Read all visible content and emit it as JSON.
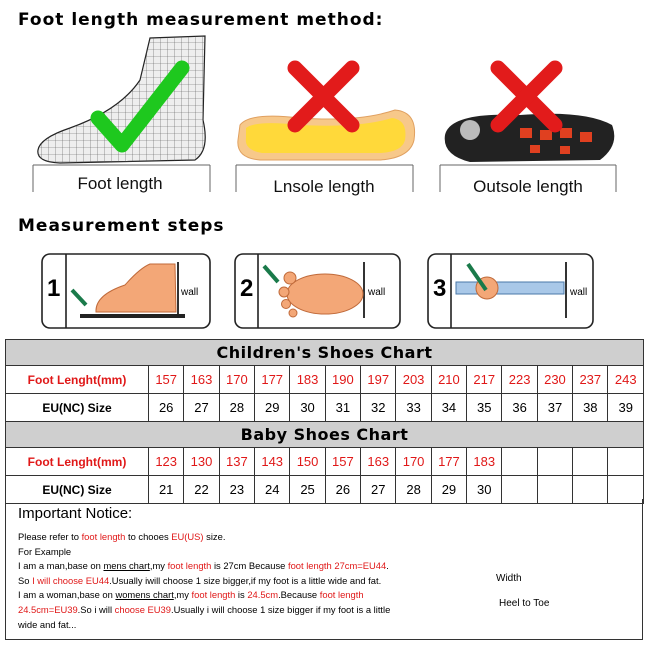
{
  "header": {
    "title": "Foot length measurement method:"
  },
  "methods": [
    {
      "label": "Foot length"
    },
    {
      "label": "Lnsole length"
    },
    {
      "label": "Outsole length"
    }
  ],
  "steps": {
    "title": "Measurement steps",
    "items": [
      {
        "number": 1,
        "wall": "wall"
      },
      {
        "number": 2,
        "wall": "wall"
      },
      {
        "number": 3,
        "wall": "wall"
      }
    ]
  },
  "charts": [
    {
      "title": "Children's Shoes Chart",
      "rows": [
        {
          "label": "Foot Lenght(mm)",
          "values": [
            157,
            163,
            170,
            177,
            183,
            190,
            197,
            203,
            210,
            217,
            223,
            230,
            237,
            243
          ]
        },
        {
          "label": "EU(NC) Size",
          "values": [
            26,
            27,
            28,
            29,
            30,
            31,
            32,
            33,
            34,
            35,
            36,
            37,
            38,
            39
          ]
        }
      ]
    },
    {
      "title": "Baby Shoes Chart",
      "rows": [
        {
          "label": "Foot Lenght(mm)",
          "values": [
            123,
            130,
            137,
            143,
            150,
            157,
            163,
            170,
            177,
            183
          ]
        },
        {
          "label": "EU(NC) Size",
          "values": [
            21,
            22,
            23,
            24,
            25,
            26,
            27,
            28,
            29,
            30
          ]
        }
      ]
    }
  ],
  "notice": {
    "title": "Important Notice:",
    "lines": [
      [
        {
          "text": "Please refer to "
        },
        {
          "text": "foot length",
          "style": "red"
        },
        {
          "text": " to chooes "
        },
        {
          "text": "EU(US)",
          "style": "red"
        },
        {
          "text": " size."
        }
      ],
      [
        {
          "text": "For Example"
        }
      ],
      [
        {
          "text": "I am a man,base on "
        },
        {
          "text": "mens chart",
          "style": "underline"
        },
        {
          "text": ",my "
        },
        {
          "text": "foot length",
          "style": "red"
        },
        {
          "text": " is 27cm Because "
        },
        {
          "text": "foot length 27cm=EU44",
          "style": "red"
        },
        {
          "text": "."
        }
      ],
      [
        {
          "text": "So "
        },
        {
          "text": "I will choose EU44",
          "style": "red"
        },
        {
          "text": ".Usually iwill choose 1 size bigger,if my foot is a little wide and fat."
        }
      ],
      [
        {
          "text": "I am a woman,base on "
        },
        {
          "text": "womens chart",
          "style": "underline"
        },
        {
          "text": ",my "
        },
        {
          "text": "foot length",
          "style": "red"
        },
        {
          "text": " is "
        },
        {
          "text": "24.5cm",
          "style": "red"
        },
        {
          "text": ".Because "
        },
        {
          "text": "foot length",
          "style": "red"
        }
      ],
      [
        {
          "text": "24.5cm=EU39",
          "style": "red"
        },
        {
          "text": ".So i will "
        },
        {
          "text": "choose EU39",
          "style": "red"
        },
        {
          "text": ".Usually i will choose 1 size bigger if my foot is a little"
        }
      ],
      [
        {
          "text": "wide and fat..."
        }
      ]
    ]
  },
  "diagram": {
    "width": "Width",
    "length": "Heel to Toe"
  }
}
